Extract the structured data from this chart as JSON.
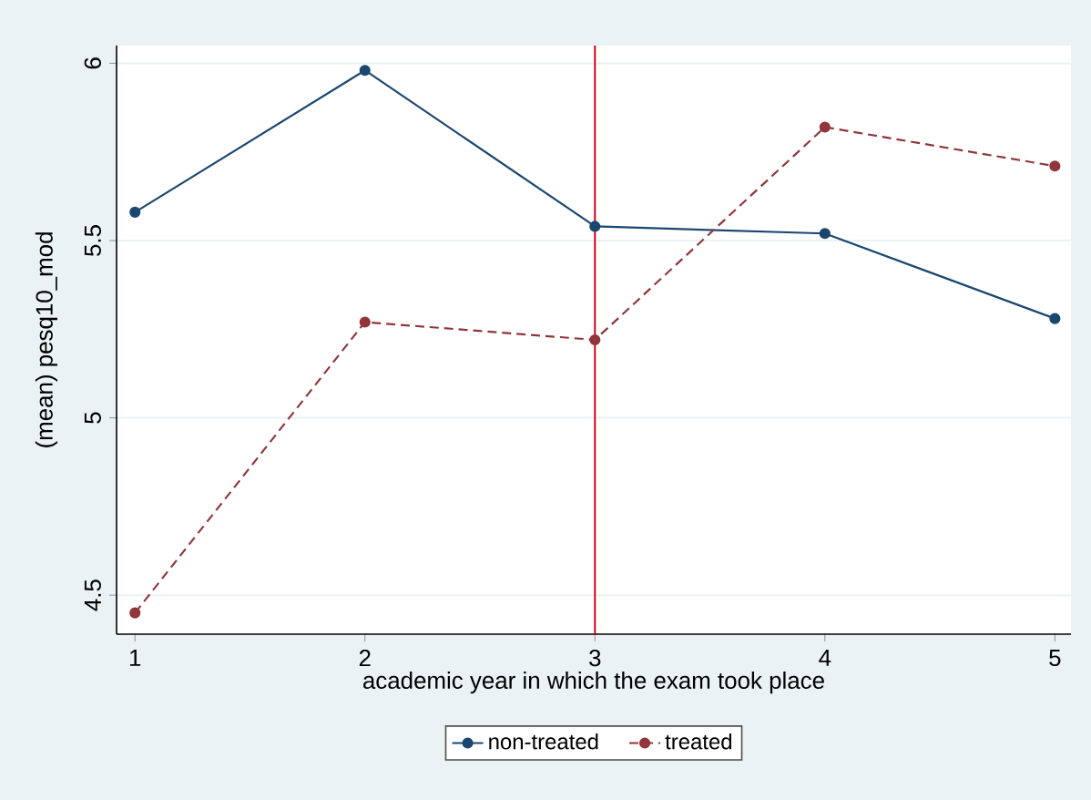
{
  "chart_data": {
    "type": "line",
    "xlabel": "academic year in which the exam took place",
    "ylabel": "(mean) pesq10_mod",
    "x": [
      1,
      2,
      3,
      4,
      5
    ],
    "series": [
      {
        "name": "non-treated",
        "color": "#1a476f",
        "values": [
          5.58,
          5.98,
          5.54,
          5.52,
          5.28
        ],
        "line_style": "solid"
      },
      {
        "name": "treated",
        "color": "#90353b",
        "values": [
          4.45,
          5.27,
          5.22,
          5.82,
          5.71
        ],
        "line_style": "dashed"
      }
    ],
    "xlim": [
      0.92,
      5.07
    ],
    "ylim": [
      4.39,
      6.05
    ],
    "xticks": [
      1,
      2,
      3,
      4,
      5
    ],
    "yticks": [
      4.5,
      5,
      5.5,
      6
    ],
    "ref_lines": [
      {
        "axis": "x",
        "value": 3,
        "color": "#d0021b"
      }
    ],
    "grid": "y",
    "legend": "bottom",
    "marker": "circle"
  }
}
